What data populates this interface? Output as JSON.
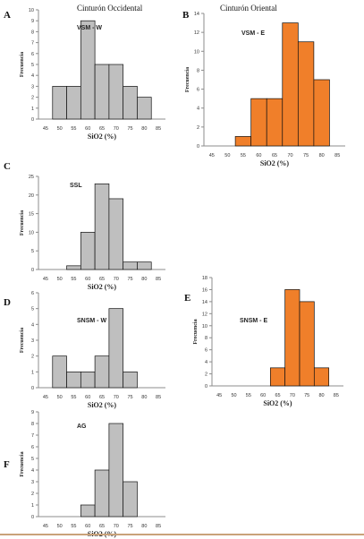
{
  "headers": {
    "left": "Cinturón Occidental",
    "right": "Cinturón Oriental"
  },
  "colors": {
    "grey_bar": "#bfbfbf",
    "orange_bar": "#f07f2a",
    "bar_stroke": "#111111",
    "axis": "#8c8c8c",
    "tick_text": "#333333"
  },
  "chart_data": [
    {
      "panel": "A",
      "label": "VSM - W",
      "type": "bar",
      "color": "grey",
      "categories": [
        "45",
        "50",
        "55",
        "60",
        "65",
        "70",
        "75",
        "80",
        "85"
      ],
      "values": [
        0,
        3,
        3,
        9,
        5,
        5,
        3,
        2,
        0
      ],
      "ylim": [
        0,
        10
      ],
      "yticks": [
        0,
        1,
        2,
        3,
        4,
        5,
        6,
        7,
        8,
        9,
        10
      ],
      "xlabel": "SiO2 (%)",
      "ylabel": "Frecuencia"
    },
    {
      "panel": "B",
      "label": "VSM - E",
      "type": "bar",
      "color": "orange",
      "categories": [
        "45",
        "50",
        "55",
        "60",
        "65",
        "70",
        "75",
        "80",
        "85"
      ],
      "values": [
        0,
        0,
        1,
        5,
        5,
        13,
        11,
        7,
        0
      ],
      "ylim": [
        0,
        14
      ],
      "yticks": [
        0,
        2,
        4,
        6,
        8,
        10,
        12,
        14
      ],
      "xlabel": "SiO2 (%)",
      "ylabel": "Frecuencia"
    },
    {
      "panel": "C",
      "label": "SSL",
      "type": "bar",
      "color": "grey",
      "categories": [
        "45",
        "50",
        "55",
        "60",
        "65",
        "70",
        "75",
        "80",
        "85"
      ],
      "values": [
        0,
        0,
        1,
        10,
        23,
        19,
        2,
        2,
        0
      ],
      "ylim": [
        0,
        25
      ],
      "yticks": [
        0,
        5,
        10,
        15,
        20,
        25
      ],
      "xlabel": "SiO2 (%)",
      "ylabel": "Frecuencia"
    },
    {
      "panel": "D",
      "label": "SNSM - W",
      "type": "bar",
      "color": "grey",
      "categories": [
        "45",
        "50",
        "55",
        "60",
        "65",
        "70",
        "75",
        "80",
        "85"
      ],
      "values": [
        0,
        2,
        1,
        1,
        2,
        5,
        1,
        0,
        0
      ],
      "ylim": [
        0,
        6
      ],
      "yticks": [
        0,
        1,
        2,
        3,
        4,
        5,
        6
      ],
      "xlabel": "SiO2 (%)",
      "ylabel": "Frecuencia"
    },
    {
      "panel": "E",
      "label": "SNSM - E",
      "type": "bar",
      "color": "orange",
      "categories": [
        "45",
        "50",
        "55",
        "60",
        "65",
        "70",
        "75",
        "80",
        "85"
      ],
      "values": [
        0,
        0,
        0,
        0,
        3,
        16,
        14,
        3,
        0
      ],
      "ylim": [
        0,
        18
      ],
      "yticks": [
        0,
        2,
        4,
        6,
        8,
        10,
        12,
        14,
        16,
        18
      ],
      "xlabel": "SiO2 (%)",
      "ylabel": "Frecuencia"
    },
    {
      "panel": "F",
      "label": "AG",
      "type": "bar",
      "color": "grey",
      "categories": [
        "45",
        "50",
        "55",
        "60",
        "65",
        "70",
        "75",
        "80",
        "85"
      ],
      "values": [
        0,
        0,
        0,
        1,
        4,
        8,
        3,
        0,
        0
      ],
      "ylim": [
        0,
        9
      ],
      "yticks": [
        0,
        1,
        2,
        3,
        4,
        5,
        6,
        7,
        8,
        9
      ],
      "xlabel": "SiO2 (%)",
      "ylabel": "Frecuencia"
    }
  ]
}
